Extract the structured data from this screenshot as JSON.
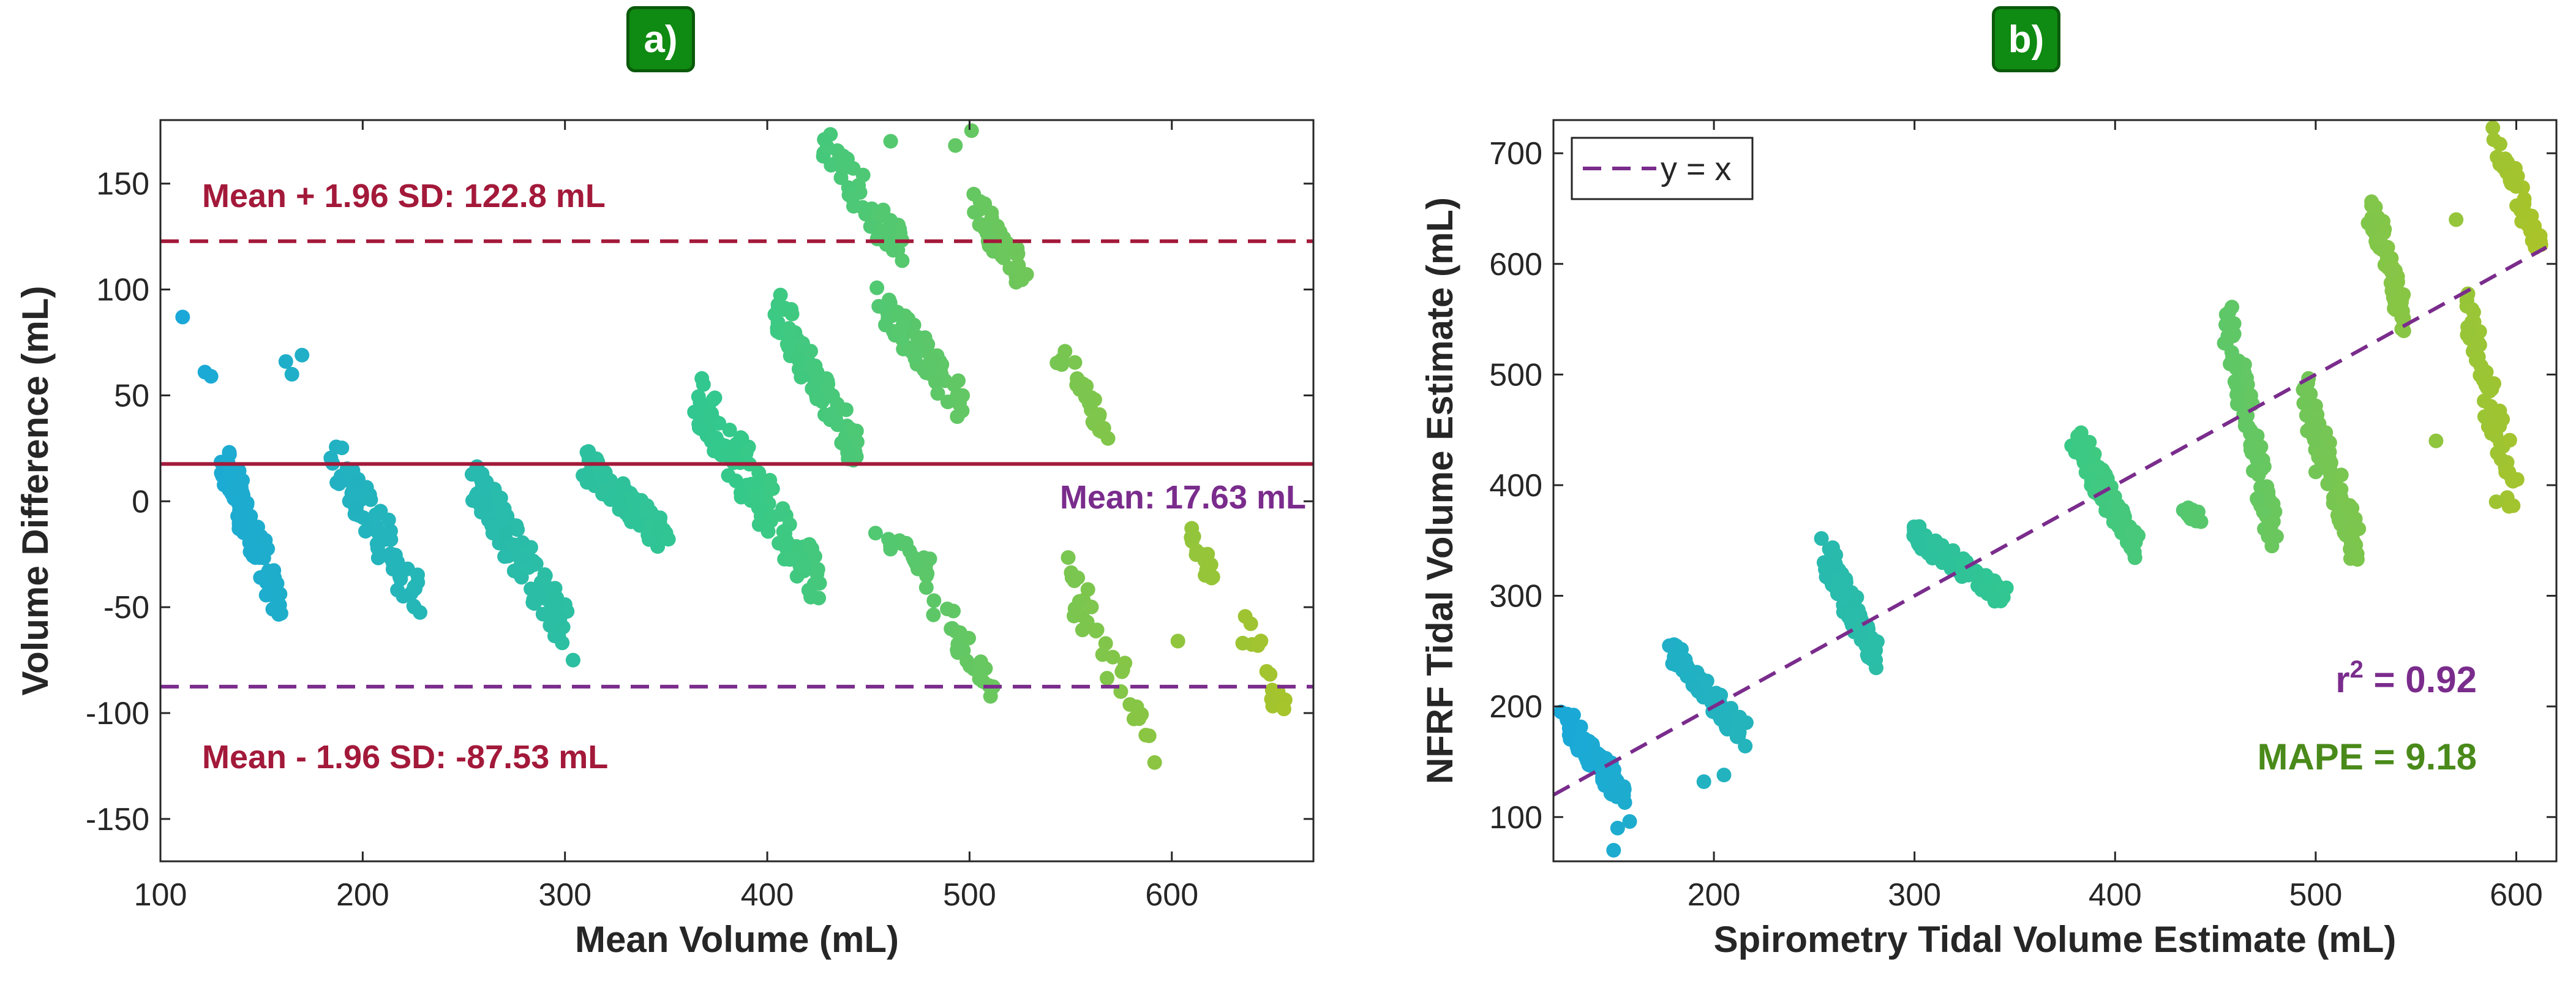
{
  "panels": {
    "a_label": "a)",
    "b_label": "b)"
  },
  "colors": {
    "crimson": "#a3193a",
    "purple": "#7a2c8c",
    "green": "#4a8a1a",
    "scatter_start": "#1aa8d8",
    "scatter_mid": "#34c98a",
    "scatter_end": "#a8c42a"
  },
  "chart_data": [
    {
      "type": "scatter",
      "title": "",
      "xlabel": "Mean Volume (mL)",
      "ylabel": "Volume Difference (mL)",
      "xlim": [
        100,
        670
      ],
      "ylim": [
        -170,
        180
      ],
      "xticks": [
        100,
        200,
        300,
        400,
        500,
        600
      ],
      "yticks": [
        -150,
        -100,
        -50,
        0,
        50,
        100,
        150
      ],
      "grid": false,
      "reference_lines": [
        {
          "label": "Mean + 1.96 SD: 122.8 mL",
          "y": 122.8,
          "style": "dashed",
          "color": "#a3193a"
        },
        {
          "label": "Mean: 17.63 mL",
          "y": 17.63,
          "style": "solid",
          "color": "#a3193a",
          "label_color": "#7a2c8c"
        },
        {
          "label": "Mean - 1.96 SD: -87.53 mL",
          "y": -87.53,
          "style": "dashed",
          "color": "#7a2c8c",
          "label_color": "#a3193a"
        }
      ],
      "clusters": [
        {
          "x": [
            131,
            160
          ],
          "y": [
            20,
            -52
          ],
          "n": 90
        },
        {
          "x": [
            185,
            228
          ],
          "y": [
            25,
            -48
          ],
          "n": 70
        },
        {
          "x": [
            255,
            300
          ],
          "y": [
            12,
            -62
          ],
          "n": 130
        },
        {
          "x": [
            310,
            350
          ],
          "y": [
            18,
            -18
          ],
          "n": 100
        },
        {
          "x": [
            365,
            426
          ],
          "y": [
            48,
            -40
          ],
          "n": 120
        },
        {
          "x": [
            405,
            445
          ],
          "y": [
            90,
            22
          ],
          "n": 75
        },
        {
          "x": [
            427,
            466
          ],
          "y": [
            170,
            118
          ],
          "n": 60
        },
        {
          "x": [
            448,
            480
          ],
          "y": [
            -12,
            -30
          ],
          "n": 20
        },
        {
          "x": [
            455,
            500
          ],
          "y": [
            95,
            42
          ],
          "n": 60
        },
        {
          "x": [
            475,
            512
          ],
          "y": [
            -35,
            -88
          ],
          "n": 30
        },
        {
          "x": [
            500,
            530
          ],
          "y": [
            142,
            104
          ],
          "n": 40
        },
        {
          "x": [
            545,
            568
          ],
          "y": [
            72,
            30
          ],
          "n": 25
        },
        {
          "x": [
            548,
            592
          ],
          "y": [
            -35,
            -115
          ],
          "n": 35
        },
        {
          "x": [
            608,
            620
          ],
          "y": [
            -13,
            -35
          ],
          "n": 15
        },
        {
          "x": [
            636,
            658
          ],
          "y": [
            -60,
            -103
          ],
          "n": 15
        }
      ],
      "points_extra": [
        [
          111,
          87
        ],
        [
          122,
          61
        ],
        [
          125,
          59
        ],
        [
          162,
          66
        ],
        [
          165,
          60
        ],
        [
          170,
          69
        ],
        [
          304,
          -75
        ],
        [
          603,
          -66
        ],
        [
          461,
          170
        ],
        [
          501,
          175
        ],
        [
          493,
          168
        ],
        [
          440,
          20
        ]
      ]
    },
    {
      "type": "scatter",
      "title": "",
      "xlabel": "Spirometry Tidal Volume Estimate (mL)",
      "ylabel": "NFRF Tidal Volume Estimate (mL)",
      "xlim": [
        120,
        620
      ],
      "ylim": [
        60,
        730
      ],
      "xticks": [
        200,
        300,
        400,
        500,
        600
      ],
      "yticks": [
        100,
        200,
        300,
        400,
        500,
        600,
        700
      ],
      "grid": false,
      "legend": {
        "label": "y = x",
        "position": "top-left",
        "style": "dashed",
        "color": "#7a2c8c"
      },
      "fit_line": {
        "x": [
          120,
          615
        ],
        "y": [
          120,
          615
        ]
      },
      "annotations": [
        {
          "prefix": "r",
          "sup": "2",
          "suffix": " = 0.92",
          "color": "#7a2c8c"
        },
        {
          "text": "MAPE = 9.18",
          "color": "#4a8a1a"
        }
      ],
      "clusters": [
        {
          "x": [
            125,
            155
          ],
          "y": [
            190,
            120
          ],
          "n": 100
        },
        {
          "x": [
            178,
            215
          ],
          "y": [
            250,
            175
          ],
          "n": 70
        },
        {
          "x": [
            255,
            280
          ],
          "y": [
            340,
            245
          ],
          "n": 130
        },
        {
          "x": [
            300,
            345
          ],
          "y": [
            355,
            300
          ],
          "n": 100
        },
        {
          "x": [
            380,
            410
          ],
          "y": [
            445,
            345
          ],
          "n": 120
        },
        {
          "x": [
            432,
            445
          ],
          "y": [
            385,
            365
          ],
          "n": 15
        },
        {
          "x": [
            455,
            480
          ],
          "y": [
            555,
            350
          ],
          "n": 90
        },
        {
          "x": [
            495,
            520
          ],
          "y": [
            480,
            345
          ],
          "n": 110
        },
        {
          "x": [
            528,
            545
          ],
          "y": [
            650,
            545
          ],
          "n": 60
        },
        {
          "x": [
            575,
            600
          ],
          "y": [
            560,
            385
          ],
          "n": 80
        },
        {
          "x": [
            590,
            612
          ],
          "y": [
            710,
            615
          ],
          "n": 50
        }
      ],
      "points_extra": [
        [
          150,
          70
        ],
        [
          152,
          90
        ],
        [
          158,
          96
        ],
        [
          195,
          132
        ],
        [
          205,
          138
        ],
        [
          570,
          640
        ],
        [
          560,
          440
        ],
        [
          590,
          385
        ],
        [
          500,
          412
        ],
        [
          505,
          420
        ]
      ]
    }
  ]
}
